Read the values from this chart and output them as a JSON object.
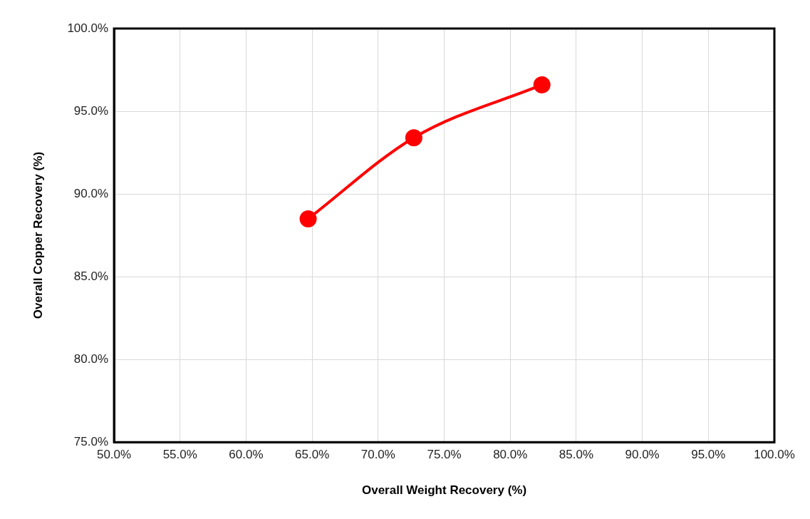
{
  "chart_data": {
    "type": "line",
    "xlabel": "Overall Weight Recovery (%)",
    "ylabel": "Overall Copper Recovery (%)",
    "x": [
      64.7,
      72.7,
      82.4
    ],
    "series": [
      {
        "color": "#ff0000",
        "values": [
          88.5,
          93.4,
          96.6
        ]
      }
    ],
    "xlim": [
      50,
      100
    ],
    "ylim": [
      75,
      100
    ],
    "xticks": [
      {
        "value": 50,
        "label": "50.0%"
      },
      {
        "value": 55,
        "label": "55.0%"
      },
      {
        "value": 60,
        "label": "60.0%"
      },
      {
        "value": 65,
        "label": "65.0%"
      },
      {
        "value": 70,
        "label": "70.0%"
      },
      {
        "value": 75,
        "label": "75.0%"
      },
      {
        "value": 80,
        "label": "80.0%"
      },
      {
        "value": 85,
        "label": "85.0%"
      },
      {
        "value": 90,
        "label": "90.0%"
      },
      {
        "value": 95,
        "label": "95.0%"
      },
      {
        "value": 100,
        "label": "100.0%"
      }
    ],
    "yticks": [
      {
        "value": 75,
        "label": "75.0%"
      },
      {
        "value": 80,
        "label": "80.0%"
      },
      {
        "value": 85,
        "label": "85.0%"
      },
      {
        "value": 90,
        "label": "90.0%"
      },
      {
        "value": 95,
        "label": "95.0%"
      },
      {
        "value": 100,
        "label": "100.0%"
      }
    ],
    "grid": true,
    "marker": "circle",
    "line_style": "solid"
  }
}
